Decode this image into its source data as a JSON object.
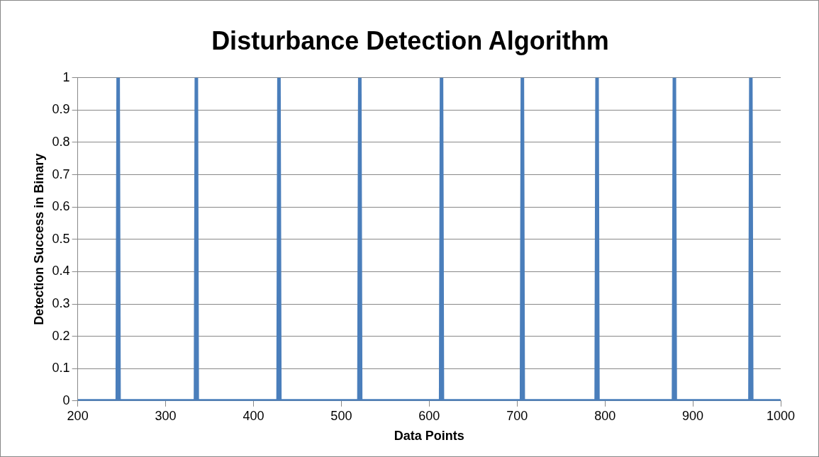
{
  "chart_data": {
    "type": "line",
    "title": "Disturbance Detection Algorithm",
    "xlabel": "Data Points",
    "ylabel": "Detection Success in Binary",
    "series": [
      {
        "color": "#4a7ebb",
        "x": [
          200,
          245,
          246,
          247,
          334,
          335,
          336,
          428,
          429,
          430,
          520,
          521,
          522,
          613,
          614,
          615,
          705,
          706,
          707,
          790,
          791,
          792,
          878,
          879,
          880,
          965,
          966,
          967,
          1000
        ],
        "values": [
          0,
          0,
          1,
          0,
          0,
          1,
          0,
          0,
          1,
          0,
          0,
          1,
          0,
          0,
          1,
          0,
          0,
          1,
          0,
          0,
          1,
          0,
          0,
          1,
          0,
          0,
          1,
          0,
          0
        ]
      }
    ],
    "xlim": [
      200,
      1000
    ],
    "xticks": [
      200,
      300,
      400,
      500,
      600,
      700,
      800,
      900,
      1000
    ],
    "ylim": [
      0,
      1
    ],
    "yticks": [
      0,
      0.1,
      0.2,
      0.3,
      0.4,
      0.5,
      0.6,
      0.7,
      0.8,
      0.9,
      1
    ],
    "grid": "y",
    "legend": false,
    "marker": "none",
    "line_style": "solid"
  }
}
